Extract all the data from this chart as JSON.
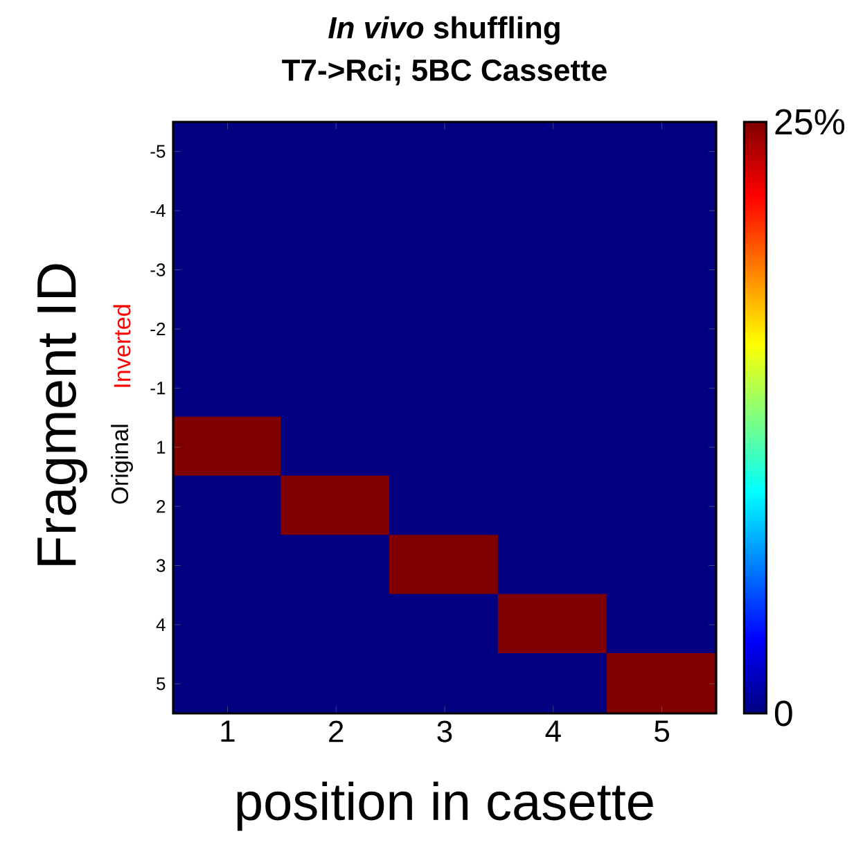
{
  "chart_data": {
    "type": "heatmap",
    "title": "*In vivo* shuffling",
    "subtitle": "T7->Rci; 5BC Cassette",
    "xlabel": "position in casette",
    "ylabel": "Fragment ID",
    "categories": [
      "1",
      "2",
      "3",
      "4",
      "5"
    ],
    "y_categories": [
      "-5",
      "-4",
      "-3",
      "-2",
      "-1",
      "1",
      "2",
      "3",
      "4",
      "5"
    ],
    "cells": [
      [
        0,
        0,
        0,
        0,
        0
      ],
      [
        0,
        0,
        0,
        0,
        0
      ],
      [
        0,
        0,
        0,
        0,
        0
      ],
      [
        0,
        0,
        0,
        0,
        0
      ],
      [
        0,
        0,
        0,
        0,
        0
      ],
      [
        25,
        0,
        0,
        0,
        0
      ],
      [
        0,
        25,
        0,
        0,
        0
      ],
      [
        0,
        0,
        25,
        0,
        0
      ],
      [
        0,
        0,
        0,
        25,
        0
      ],
      [
        0,
        0,
        0,
        0,
        25
      ]
    ],
    "clim": [
      0,
      25
    ],
    "cticks": [
      {
        "value": 0,
        "label": "0"
      },
      {
        "value": 25,
        "label": "25%"
      }
    ],
    "annotations": [
      "Original",
      "Inverted"
    ]
  }
}
